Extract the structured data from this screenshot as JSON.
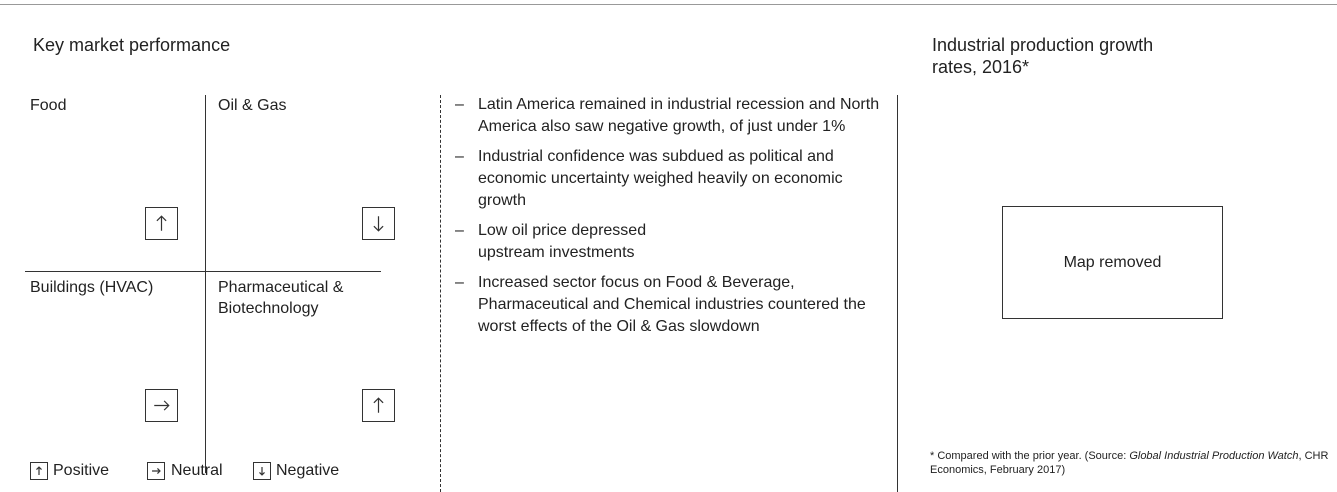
{
  "left_panel": {
    "title": "Key market performance",
    "quadrants": [
      "Food",
      "Oil & Gas",
      "Buildings (HVAC)",
      "Pharmaceutical & Biotechnology"
    ],
    "legend": [
      "Positive",
      "Neutral",
      "Negative"
    ]
  },
  "middle_panel": {
    "bullets": [
      "Latin America remained in industrial recession and North America also saw negative growth, of just under 1%",
      "Industrial confidence was subdued as political and economic uncertainty weighed heavily on economic growth",
      "Low oil price depressed upstream investments",
      "Increased sector focus on Food & Beverage, Pharmaceutical and Chemical industries countered the worst effects of the Oil & Gas slowdown"
    ]
  },
  "right_panel": {
    "title": "Industrial production growth rates, 2016*",
    "placeholder": "Map removed",
    "footnote": [
      "* Compared with the prior year. (Source: ",
      "Global Industrial Production Watch",
      ", CHR Economics, February 2017)"
    ]
  }
}
